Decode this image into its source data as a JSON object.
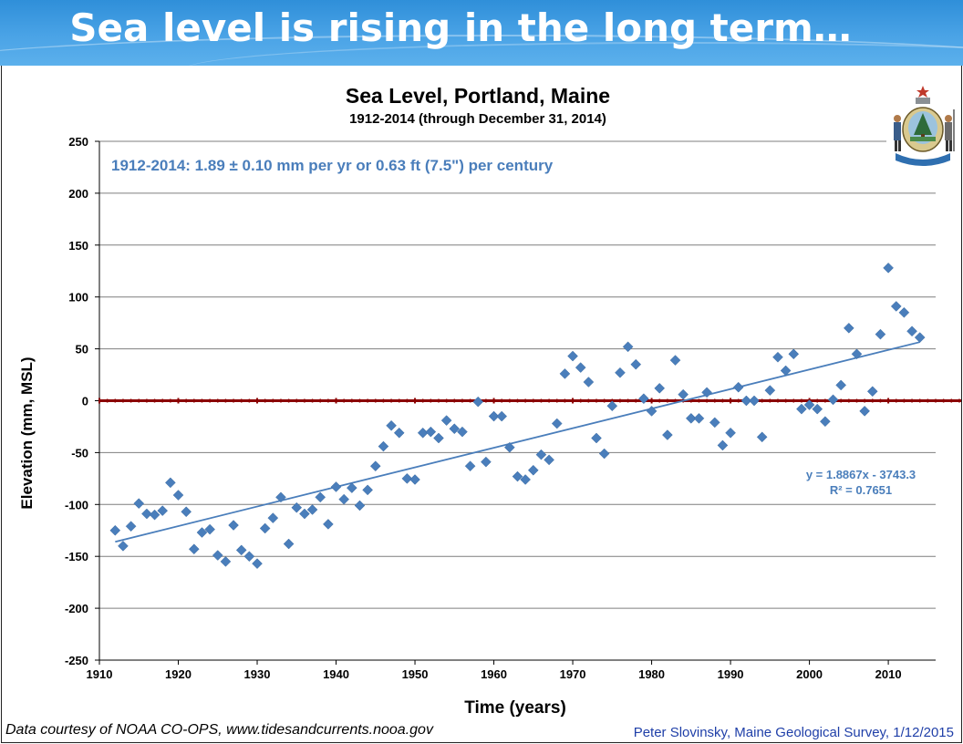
{
  "slide": {
    "title": "Sea level is rising in the long term…"
  },
  "credits": {
    "left": "Data courtesy of NOAA CO-OPS, www.tidesandcurrents.nooa.gov",
    "right": "Peter Slovinsky,  Maine Geological Survey, 1/12/2015"
  },
  "colors": {
    "banner": "#3a9be0",
    "points": "#4a7ebb",
    "trend": "#4a7ebb",
    "zero_line": "#8b0000",
    "annotation": "#4a7ebb"
  },
  "icons": {
    "seal": "maine-state-seal-icon"
  },
  "chart_data": {
    "type": "scatter",
    "title": "Sea Level, Portland, Maine",
    "subtitle": "1912-2014 (through  December 31, 2014)",
    "xlabel": "Time (years)",
    "ylabel": "Elevation (mm, MSL)",
    "xlim": [
      1910,
      2016
    ],
    "ylim": [
      -250,
      250
    ],
    "x_ticks": [
      1910,
      1920,
      1930,
      1940,
      1950,
      1960,
      1970,
      1980,
      1990,
      2000,
      2010
    ],
    "y_ticks": [
      250,
      200,
      150,
      100,
      50,
      0,
      -50,
      -100,
      -150,
      -200,
      -250
    ],
    "grid": "horizontal",
    "rate_annotation": "1912-2014: 1.89  ± 0.10 mm per yr or 0.63 ft (7.5\") per century",
    "equation": "y = 1.8867x - 3743.3",
    "r_squared": "R² = 0.7651",
    "trend": {
      "slope": 1.8867,
      "intercept": -3743.3,
      "x_range": [
        1912,
        2014
      ]
    },
    "reference_line": {
      "y": 0,
      "style": "dashed-dark-red"
    },
    "series": [
      {
        "x": [
          1912,
          1913,
          1914,
          1915,
          1916,
          1917,
          1918,
          1919,
          1920,
          1921,
          1922,
          1923,
          1924,
          1925,
          1926,
          1927,
          1928,
          1929,
          1930,
          1931,
          1932,
          1933,
          1934,
          1935,
          1936,
          1937,
          1938,
          1939,
          1940,
          1941,
          1942,
          1943,
          1944,
          1945,
          1946,
          1947,
          1948,
          1949,
          1950,
          1951,
          1952,
          1953,
          1954,
          1955,
          1956,
          1957,
          1958,
          1959,
          1960,
          1961,
          1962,
          1963,
          1964,
          1965,
          1966,
          1967,
          1968,
          1969,
          1970,
          1971,
          1972,
          1973,
          1974,
          1975,
          1976,
          1977,
          1978,
          1979,
          1980,
          1981,
          1982,
          1983,
          1984,
          1985,
          1986,
          1987,
          1988,
          1989,
          1990,
          1991,
          1992,
          1993,
          1994,
          1995,
          1996,
          1997,
          1998,
          1999,
          2000,
          2001,
          2002,
          2003,
          2004,
          2005,
          2006,
          2007,
          2008,
          2009,
          2010,
          2011,
          2012,
          2013,
          2014
        ],
        "y": [
          -125,
          -140,
          -121,
          -99,
          -109,
          -110,
          -106,
          -79,
          -91,
          -107,
          -143,
          -127,
          -124,
          -149,
          -155,
          -120,
          -144,
          -150,
          -157,
          -123,
          -113,
          -93,
          -138,
          -103,
          -109,
          -105,
          -93,
          -119,
          -83,
          -95,
          -84,
          -101,
          -86,
          -63,
          -44,
          -24,
          -31,
          -75,
          -76,
          -31,
          -30,
          -36,
          -19,
          -27,
          -30,
          -63,
          -1,
          -59,
          -15,
          -15,
          -45,
          -73,
          -76,
          -67,
          -52,
          -57,
          -22,
          26,
          43,
          32,
          18,
          -36,
          -51,
          -5,
          27,
          52,
          35,
          2,
          -10,
          12,
          -33,
          39,
          6,
          -17,
          -17,
          8,
          -21,
          -43,
          -31,
          13,
          0,
          0,
          -35,
          10,
          42,
          29,
          45,
          -8,
          -4,
          -8,
          -20,
          1,
          15,
          70,
          45,
          -10,
          9,
          64,
          128,
          91,
          85,
          67,
          61
        ]
      }
    ]
  }
}
